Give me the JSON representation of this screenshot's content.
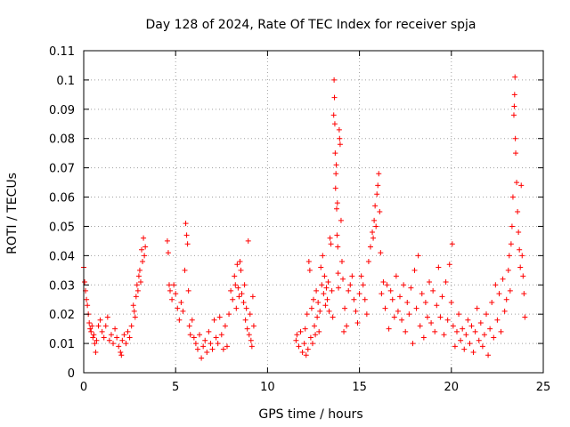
{
  "chart_data": {
    "type": "scatter",
    "title": "Day 128 of 2024, Rate Of TEC Index for receiver spja",
    "xlabel": "GPS time / hours",
    "ylabel": "ROTI / TECUs",
    "xlim": [
      0,
      25
    ],
    "ylim": [
      0,
      0.11
    ],
    "x_ticks": [
      0,
      5,
      10,
      15,
      20,
      25
    ],
    "x_tick_labels": [
      "0",
      "5",
      "10",
      "15",
      "20",
      "25"
    ],
    "y_ticks": [
      0,
      0.01,
      0.02,
      0.03,
      0.04,
      0.05,
      0.06,
      0.07,
      0.08,
      0.09,
      0.1,
      0.11
    ],
    "y_tick_labels": [
      "0",
      "0.01",
      "0.02",
      "0.03",
      "0.04",
      "0.05",
      "0.06",
      "0.07",
      "0.08",
      "0.09",
      "0.1",
      "0.11"
    ],
    "grid": true,
    "marker": "+",
    "color": "#ff0000",
    "series": [
      {
        "name": "ROTI",
        "points": [
          [
            0.0,
            0.036
          ],
          [
            0.05,
            0.031
          ],
          [
            0.1,
            0.028
          ],
          [
            0.15,
            0.025
          ],
          [
            0.2,
            0.023
          ],
          [
            0.25,
            0.02
          ],
          [
            0.3,
            0.017
          ],
          [
            0.35,
            0.015
          ],
          [
            0.4,
            0.014
          ],
          [
            0.45,
            0.016
          ],
          [
            0.5,
            0.012
          ],
          [
            0.55,
            0.013
          ],
          [
            0.6,
            0.01
          ],
          [
            0.65,
            0.007
          ],
          [
            0.7,
            0.011
          ],
          [
            0.8,
            0.016
          ],
          [
            0.9,
            0.018
          ],
          [
            1.0,
            0.014
          ],
          [
            1.1,
            0.012
          ],
          [
            1.2,
            0.016
          ],
          [
            1.3,
            0.019
          ],
          [
            1.4,
            0.011
          ],
          [
            1.5,
            0.013
          ],
          [
            1.6,
            0.01
          ],
          [
            1.7,
            0.015
          ],
          [
            1.8,
            0.012
          ],
          [
            1.9,
            0.009
          ],
          [
            2.0,
            0.007
          ],
          [
            2.05,
            0.006
          ],
          [
            2.1,
            0.011
          ],
          [
            2.2,
            0.013
          ],
          [
            2.3,
            0.01
          ],
          [
            2.4,
            0.014
          ],
          [
            2.5,
            0.012
          ],
          [
            2.6,
            0.016
          ],
          [
            2.7,
            0.023
          ],
          [
            2.75,
            0.021
          ],
          [
            2.8,
            0.019
          ],
          [
            2.85,
            0.026
          ],
          [
            2.9,
            0.03
          ],
          [
            2.95,
            0.028
          ],
          [
            3.0,
            0.033
          ],
          [
            3.05,
            0.035
          ],
          [
            3.1,
            0.031
          ],
          [
            3.15,
            0.042
          ],
          [
            3.2,
            0.038
          ],
          [
            3.25,
            0.046
          ],
          [
            3.3,
            0.04
          ],
          [
            3.35,
            0.043
          ],
          [
            4.55,
            0.045
          ],
          [
            4.6,
            0.041
          ],
          [
            4.65,
            0.03
          ],
          [
            4.7,
            0.028
          ],
          [
            4.8,
            0.025
          ],
          [
            4.9,
            0.03
          ],
          [
            5.0,
            0.027
          ],
          [
            5.1,
            0.022
          ],
          [
            5.2,
            0.018
          ],
          [
            5.3,
            0.024
          ],
          [
            5.4,
            0.021
          ],
          [
            5.5,
            0.035
          ],
          [
            5.55,
            0.051
          ],
          [
            5.6,
            0.047
          ],
          [
            5.65,
            0.044
          ],
          [
            5.7,
            0.028
          ],
          [
            5.75,
            0.016
          ],
          [
            5.8,
            0.013
          ],
          [
            5.9,
            0.018
          ],
          [
            6.0,
            0.012
          ],
          [
            6.1,
            0.01
          ],
          [
            6.2,
            0.008
          ],
          [
            6.3,
            0.013
          ],
          [
            6.4,
            0.005
          ],
          [
            6.5,
            0.009
          ],
          [
            6.6,
            0.011
          ],
          [
            6.7,
            0.007
          ],
          [
            6.8,
            0.014
          ],
          [
            6.9,
            0.01
          ],
          [
            7.0,
            0.008
          ],
          [
            7.1,
            0.018
          ],
          [
            7.2,
            0.012
          ],
          [
            7.3,
            0.01
          ],
          [
            7.4,
            0.019
          ],
          [
            7.5,
            0.013
          ],
          [
            7.6,
            0.008
          ],
          [
            7.7,
            0.016
          ],
          [
            7.8,
            0.009
          ],
          [
            7.9,
            0.02
          ],
          [
            8.0,
            0.028
          ],
          [
            8.1,
            0.025
          ],
          [
            8.2,
            0.033
          ],
          [
            8.25,
            0.03
          ],
          [
            8.3,
            0.022
          ],
          [
            8.35,
            0.037
          ],
          [
            8.4,
            0.029
          ],
          [
            8.45,
            0.026
          ],
          [
            8.5,
            0.038
          ],
          [
            8.55,
            0.035
          ],
          [
            8.6,
            0.027
          ],
          [
            8.7,
            0.024
          ],
          [
            8.75,
            0.03
          ],
          [
            8.8,
            0.018
          ],
          [
            8.85,
            0.022
          ],
          [
            8.9,
            0.015
          ],
          [
            8.95,
            0.045
          ],
          [
            9.0,
            0.013
          ],
          [
            9.05,
            0.02
          ],
          [
            9.1,
            0.011
          ],
          [
            9.15,
            0.009
          ],
          [
            9.2,
            0.026
          ],
          [
            9.25,
            0.016
          ],
          [
            11.55,
            0.011
          ],
          [
            11.6,
            0.013
          ],
          [
            11.7,
            0.009
          ],
          [
            11.8,
            0.014
          ],
          [
            11.9,
            0.007
          ],
          [
            12.0,
            0.01
          ],
          [
            12.05,
            0.015
          ],
          [
            12.1,
            0.006
          ],
          [
            12.15,
            0.02
          ],
          [
            12.2,
            0.008
          ],
          [
            12.25,
            0.038
          ],
          [
            12.3,
            0.035
          ],
          [
            12.35,
            0.012
          ],
          [
            12.4,
            0.022
          ],
          [
            12.45,
            0.01
          ],
          [
            12.5,
            0.025
          ],
          [
            12.55,
            0.016
          ],
          [
            12.6,
            0.013
          ],
          [
            12.65,
            0.028
          ],
          [
            12.7,
            0.019
          ],
          [
            12.75,
            0.024
          ],
          [
            12.8,
            0.014
          ],
          [
            12.85,
            0.021
          ],
          [
            12.9,
            0.036
          ],
          [
            12.95,
            0.03
          ],
          [
            13.0,
            0.04
          ],
          [
            13.05,
            0.027
          ],
          [
            13.1,
            0.033
          ],
          [
            13.15,
            0.023
          ],
          [
            13.2,
            0.029
          ],
          [
            13.25,
            0.025
          ],
          [
            13.3,
            0.031
          ],
          [
            13.35,
            0.021
          ],
          [
            13.4,
            0.046
          ],
          [
            13.45,
            0.044
          ],
          [
            13.5,
            0.028
          ],
          [
            13.55,
            0.019
          ],
          [
            13.6,
            0.088
          ],
          [
            13.62,
            0.1
          ],
          [
            13.64,
            0.094
          ],
          [
            13.66,
            0.085
          ],
          [
            13.68,
            0.075
          ],
          [
            13.7,
            0.063
          ],
          [
            13.72,
            0.068
          ],
          [
            13.74,
            0.071
          ],
          [
            13.76,
            0.056
          ],
          [
            13.78,
            0.047
          ],
          [
            13.8,
            0.058
          ],
          [
            13.82,
            0.043
          ],
          [
            13.84,
            0.034
          ],
          [
            13.86,
            0.029
          ],
          [
            13.9,
            0.083
          ],
          [
            13.92,
            0.08
          ],
          [
            13.95,
            0.078
          ],
          [
            14.0,
            0.052
          ],
          [
            14.05,
            0.038
          ],
          [
            14.1,
            0.032
          ],
          [
            14.15,
            0.014
          ],
          [
            14.2,
            0.022
          ],
          [
            14.3,
            0.016
          ],
          [
            14.4,
            0.028
          ],
          [
            14.5,
            0.03
          ],
          [
            14.6,
            0.033
          ],
          [
            14.7,
            0.025
          ],
          [
            14.8,
            0.021
          ],
          [
            14.9,
            0.017
          ],
          [
            15.0,
            0.027
          ],
          [
            15.1,
            0.033
          ],
          [
            15.2,
            0.03
          ],
          [
            15.3,
            0.025
          ],
          [
            15.4,
            0.02
          ],
          [
            15.5,
            0.038
          ],
          [
            15.6,
            0.043
          ],
          [
            15.7,
            0.048
          ],
          [
            15.75,
            0.046
          ],
          [
            15.8,
            0.052
          ],
          [
            15.85,
            0.057
          ],
          [
            15.9,
            0.05
          ],
          [
            15.95,
            0.061
          ],
          [
            16.0,
            0.064
          ],
          [
            16.05,
            0.068
          ],
          [
            16.1,
            0.055
          ],
          [
            16.15,
            0.041
          ],
          [
            16.2,
            0.027
          ],
          [
            16.3,
            0.031
          ],
          [
            16.4,
            0.022
          ],
          [
            16.5,
            0.03
          ],
          [
            16.6,
            0.015
          ],
          [
            16.7,
            0.028
          ],
          [
            16.8,
            0.025
          ],
          [
            16.9,
            0.019
          ],
          [
            17.0,
            0.033
          ],
          [
            17.1,
            0.021
          ],
          [
            17.2,
            0.026
          ],
          [
            17.3,
            0.018
          ],
          [
            17.4,
            0.03
          ],
          [
            17.5,
            0.014
          ],
          [
            17.6,
            0.024
          ],
          [
            17.7,
            0.02
          ],
          [
            17.8,
            0.029
          ],
          [
            17.9,
            0.01
          ],
          [
            18.0,
            0.035
          ],
          [
            18.1,
            0.022
          ],
          [
            18.2,
            0.04
          ],
          [
            18.3,
            0.016
          ],
          [
            18.4,
            0.027
          ],
          [
            18.5,
            0.012
          ],
          [
            18.6,
            0.024
          ],
          [
            18.7,
            0.019
          ],
          [
            18.8,
            0.031
          ],
          [
            18.9,
            0.017
          ],
          [
            19.0,
            0.028
          ],
          [
            19.1,
            0.014
          ],
          [
            19.2,
            0.023
          ],
          [
            19.3,
            0.036
          ],
          [
            19.4,
            0.019
          ],
          [
            19.5,
            0.026
          ],
          [
            19.6,
            0.013
          ],
          [
            19.7,
            0.031
          ],
          [
            19.8,
            0.018
          ],
          [
            19.9,
            0.037
          ],
          [
            20.0,
            0.024
          ],
          [
            20.05,
            0.044
          ],
          [
            20.1,
            0.016
          ],
          [
            20.2,
            0.009
          ],
          [
            20.3,
            0.014
          ],
          [
            20.4,
            0.02
          ],
          [
            20.5,
            0.011
          ],
          [
            20.6,
            0.015
          ],
          [
            20.7,
            0.008
          ],
          [
            20.8,
            0.013
          ],
          [
            20.9,
            0.018
          ],
          [
            21.0,
            0.01
          ],
          [
            21.1,
            0.016
          ],
          [
            21.2,
            0.007
          ],
          [
            21.3,
            0.014
          ],
          [
            21.4,
            0.022
          ],
          [
            21.5,
            0.011
          ],
          [
            21.6,
            0.017
          ],
          [
            21.7,
            0.009
          ],
          [
            21.8,
            0.013
          ],
          [
            21.9,
            0.02
          ],
          [
            22.0,
            0.006
          ],
          [
            22.1,
            0.015
          ],
          [
            22.2,
            0.024
          ],
          [
            22.3,
            0.012
          ],
          [
            22.4,
            0.03
          ],
          [
            22.5,
            0.018
          ],
          [
            22.6,
            0.027
          ],
          [
            22.7,
            0.014
          ],
          [
            22.8,
            0.032
          ],
          [
            22.9,
            0.021
          ],
          [
            23.0,
            0.025
          ],
          [
            23.1,
            0.035
          ],
          [
            23.15,
            0.04
          ],
          [
            23.2,
            0.028
          ],
          [
            23.25,
            0.044
          ],
          [
            23.3,
            0.05
          ],
          [
            23.35,
            0.06
          ],
          [
            23.4,
            0.088
          ],
          [
            23.42,
            0.091
          ],
          [
            23.44,
            0.095
          ],
          [
            23.46,
            0.101
          ],
          [
            23.48,
            0.08
          ],
          [
            23.5,
            0.075
          ],
          [
            23.55,
            0.065
          ],
          [
            23.6,
            0.055
          ],
          [
            23.65,
            0.048
          ],
          [
            23.7,
            0.042
          ],
          [
            23.75,
            0.036
          ],
          [
            23.8,
            0.064
          ],
          [
            23.85,
            0.04
          ],
          [
            23.9,
            0.033
          ],
          [
            23.95,
            0.027
          ],
          [
            24.0,
            0.019
          ]
        ]
      }
    ]
  }
}
